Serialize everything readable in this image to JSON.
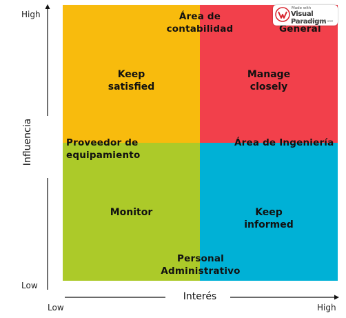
{
  "colors": {
    "top_left": "#f8bb0d",
    "top_right": "#f2404b",
    "bottom_left": "#acca29",
    "bottom_right": "#00b1d6"
  },
  "axes": {
    "y_title": "Influencia",
    "y_high": "High",
    "y_low": "Low",
    "x_title": "Interés",
    "x_low": "Low",
    "x_high": "High"
  },
  "quadrants": {
    "top_left": "Keep\nsatisfied",
    "top_right": "Manage\nclosely",
    "bottom_left": "Monitor",
    "bottom_right": "Keep\ninformed"
  },
  "stakeholders": {
    "area_contabilidad": "Área de\ncontabilidad",
    "general": "General",
    "proveedor": "Proveedor de\nequipamiento",
    "area_ingenieria": "Área de Ingeniería",
    "personal_admin": "Personal\nAdministrativo"
  },
  "watermark": {
    "made_with": "Made with",
    "brand": "Visual Paradigm",
    "note": "For non-commercial use"
  }
}
